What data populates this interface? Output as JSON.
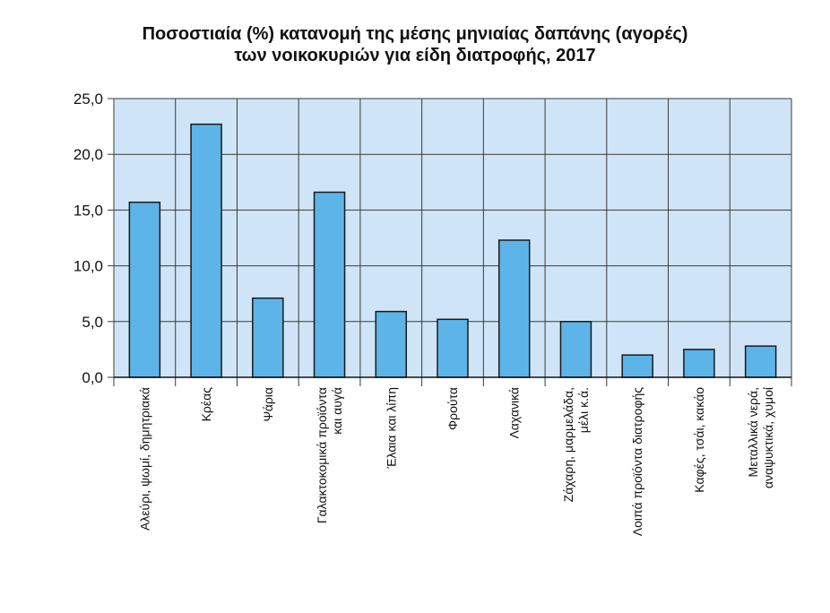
{
  "chart_data": {
    "type": "bar",
    "title_lines": [
      "Ποσοστιαία (%) κατανομή της μέσης μηνιαίας δαπάνης (αγορές)",
      "των νοικοκυριών για είδη διατροφής, 2017"
    ],
    "categories": [
      [
        "Αλεύρι, ψωμί, δημητριακά"
      ],
      [
        "Κρέας"
      ],
      [
        "Ψάρια"
      ],
      [
        "Γαλακτοκομικά προϊόντα",
        "και αυγά"
      ],
      [
        "Έλαια και λίπη"
      ],
      [
        "Φρούτα"
      ],
      [
        "Λαχανικά"
      ],
      [
        "Ζάχαρη, μαρμελάδα,",
        "μέλι κ.ά."
      ],
      [
        "Λοιπά προϊόντα διατροφής"
      ],
      [
        "Καφές, τσάι, κακάο"
      ],
      [
        "Μεταλλικά νερά,",
        "αναψυκτικά, χυμοί"
      ]
    ],
    "values": [
      15.7,
      22.7,
      7.1,
      16.6,
      5.9,
      5.2,
      12.3,
      5.0,
      2.0,
      2.5,
      2.8
    ],
    "yticks": [
      "0,0",
      "5,0",
      "10,0",
      "15,0",
      "20,0",
      "25,0"
    ],
    "ylim": [
      0,
      25
    ],
    "grid": true,
    "colors": {
      "plot_bg": "#cfe5f7",
      "bar_fill": "#5db4e8",
      "bar_stroke": "#1a1a1a",
      "grid": "#3a3a3a"
    }
  }
}
